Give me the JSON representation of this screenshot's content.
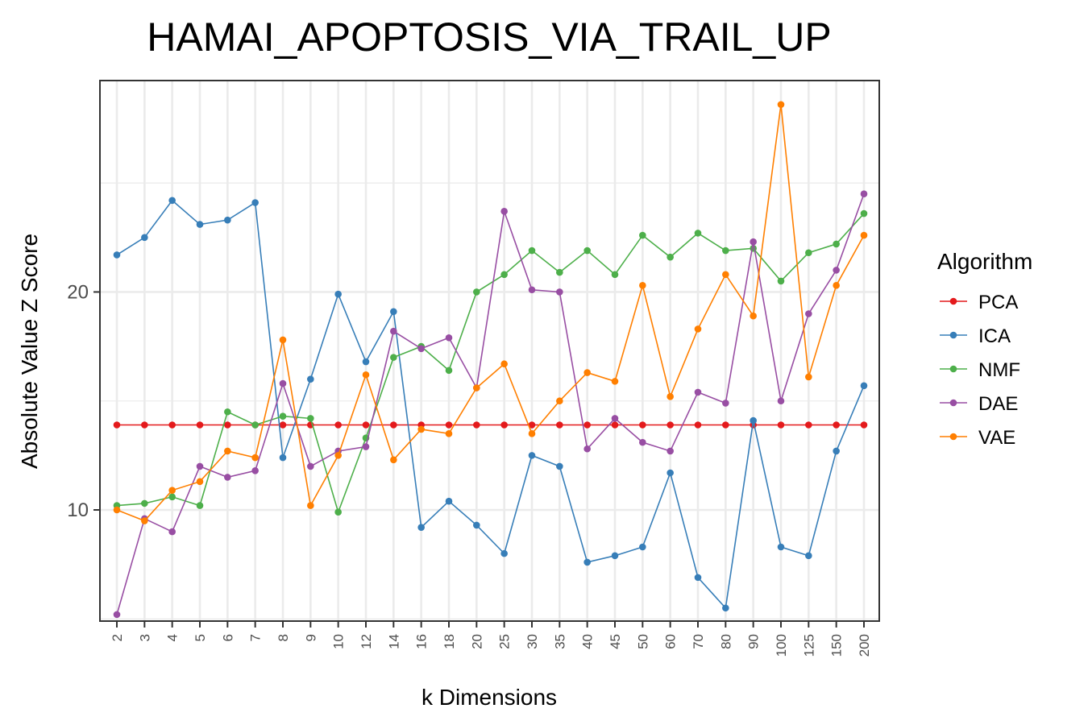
{
  "chart_data": {
    "type": "line",
    "title": "HAMAI_APOPTOSIS_VIA_TRAIL_UP",
    "xlabel": "k Dimensions",
    "ylabel": "Absolute Value Z Score",
    "x": [
      "2",
      "3",
      "4",
      "5",
      "6",
      "7",
      "8",
      "9",
      "10",
      "12",
      "14",
      "16",
      "18",
      "20",
      "25",
      "30",
      "35",
      "40",
      "45",
      "50",
      "60",
      "70",
      "80",
      "90",
      "100",
      "125",
      "150",
      "200"
    ],
    "ylim": [
      4.9,
      29.7
    ],
    "yticks": [
      10,
      20
    ],
    "legend": {
      "title": "Algorithm",
      "position": "right"
    },
    "grid": true,
    "series": [
      {
        "name": "PCA",
        "color": "#E41A1C",
        "values": [
          13.9,
          13.9,
          13.9,
          13.9,
          13.9,
          13.9,
          13.9,
          13.9,
          13.9,
          13.9,
          13.9,
          13.9,
          13.9,
          13.9,
          13.9,
          13.9,
          13.9,
          13.9,
          13.9,
          13.9,
          13.9,
          13.9,
          13.9,
          13.9,
          13.9,
          13.9,
          13.9,
          13.9
        ]
      },
      {
        "name": "ICA",
        "color": "#377EB8",
        "values": [
          21.7,
          22.5,
          24.2,
          23.1,
          23.3,
          24.1,
          12.4,
          16.0,
          19.9,
          16.8,
          19.1,
          9.2,
          10.4,
          9.3,
          8.0,
          12.5,
          12.0,
          7.6,
          7.9,
          8.3,
          11.7,
          6.9,
          5.5,
          14.1,
          8.3,
          7.9,
          12.7,
          15.7
        ]
      },
      {
        "name": "NMF",
        "color": "#4DAF4A",
        "values": [
          10.2,
          10.3,
          10.6,
          10.2,
          14.5,
          13.9,
          14.3,
          14.2,
          9.9,
          13.3,
          17.0,
          17.5,
          16.4,
          20.0,
          20.8,
          21.9,
          20.9,
          21.9,
          20.8,
          22.6,
          21.6,
          22.7,
          21.9,
          22.0,
          20.5,
          21.8,
          22.2,
          23.6
        ]
      },
      {
        "name": "DAE",
        "color": "#984EA3",
        "values": [
          5.2,
          9.6,
          9.0,
          12.0,
          11.5,
          11.8,
          15.8,
          12.0,
          12.7,
          12.9,
          18.2,
          17.4,
          17.9,
          15.6,
          23.7,
          20.1,
          20.0,
          12.8,
          14.2,
          13.1,
          12.7,
          15.4,
          14.9,
          22.3,
          15.0,
          19.0,
          21.0,
          24.5
        ]
      },
      {
        "name": "VAE",
        "color": "#FF7F00",
        "values": [
          10.0,
          9.5,
          10.9,
          11.3,
          12.7,
          12.4,
          17.8,
          10.2,
          12.5,
          16.2,
          12.3,
          13.7,
          13.5,
          15.6,
          16.7,
          13.5,
          15.0,
          16.3,
          15.9,
          20.3,
          15.2,
          18.3,
          20.8,
          18.9,
          28.6,
          16.1,
          20.3,
          22.6
        ]
      }
    ]
  }
}
